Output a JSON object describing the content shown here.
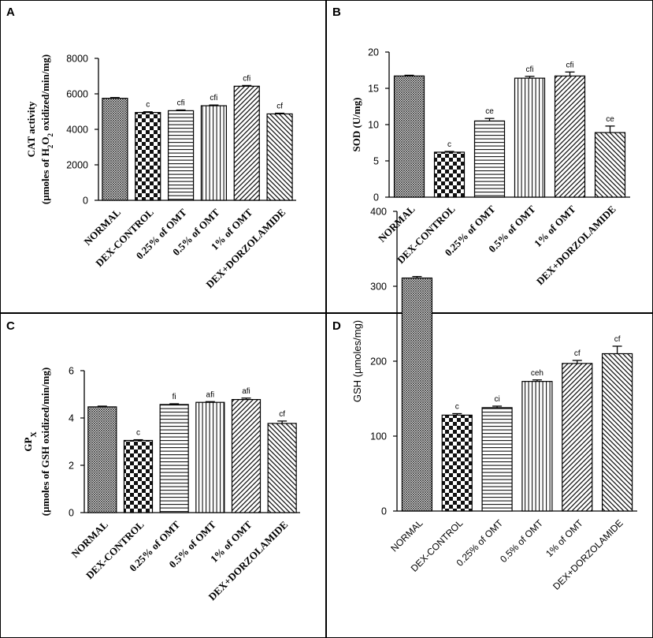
{
  "chart_data": [
    {
      "panel": "A",
      "type": "bar",
      "title": "",
      "xlabel": "",
      "ylabel_line1": "CAT activity",
      "ylabel_line2_prefix": "(µmoles of H",
      "ylabel_line2_sub1": "2",
      "ylabel_line2_mid": "O",
      "ylabel_line2_sub2": "2",
      "ylabel_line2_suffix": " oxidized/min/mg)",
      "ylim": [
        0,
        8000
      ],
      "yticks": [
        0,
        2000,
        4000,
        6000,
        8000
      ],
      "categories": [
        "NORMAL",
        "DEX-CONTROL",
        "0.25% of OMT",
        "0.5% of OMT",
        "1% of OMT",
        "DEX+DORZOLAMIDE"
      ],
      "values": [
        5750,
        4950,
        5050,
        5330,
        6430,
        4870
      ],
      "errors": [
        40,
        40,
        40,
        40,
        40,
        40
      ],
      "labels": [
        "",
        "c",
        "cfi",
        "cfi",
        "cfi",
        "cf"
      ]
    },
    {
      "panel": "B",
      "type": "bar",
      "title": "",
      "xlabel": "",
      "ylabel": "SOD (U/mg)",
      "ylim": [
        0,
        20
      ],
      "yticks": [
        0,
        5,
        10,
        15,
        20
      ],
      "categories": [
        "NORMAL",
        "DEX-CONTROL",
        "0.25% of OMT",
        "0.5% of OMT",
        "1% of OMT",
        "DEX+DORZOLAMIDE"
      ],
      "values": [
        16.7,
        6.2,
        10.5,
        16.4,
        16.7,
        8.9
      ],
      "errors": [
        0.1,
        0.1,
        0.35,
        0.25,
        0.55,
        0.9
      ],
      "labels": [
        "",
        "c",
        "ce",
        "cfi",
        "cfi",
        "ce"
      ]
    },
    {
      "panel": "C",
      "type": "bar",
      "title": "",
      "xlabel": "",
      "ylabel_line1_prefix": "GP",
      "ylabel_line1_sub": "X",
      "ylabel_line2": "(µmoles of GSH oxidized/min/mg)",
      "ylim": [
        0,
        6
      ],
      "yticks": [
        0,
        2,
        4,
        6
      ],
      "categories": [
        "NORMAL",
        "DEX-CONTROL",
        "0.25% of OMT",
        "0.5% of OMT",
        "1% of OMT",
        "DEX+DORZOLAMIDE"
      ],
      "values": [
        4.47,
        3.05,
        4.57,
        4.66,
        4.78,
        3.77
      ],
      "errors": [
        0.03,
        0.03,
        0.03,
        0.03,
        0.06,
        0.1
      ],
      "labels": [
        "",
        "c",
        "fi",
        "afi",
        "afi",
        "cf"
      ]
    },
    {
      "panel": "D",
      "type": "bar",
      "title": "",
      "xlabel": "",
      "ylabel": "GSH (µmoles/mg)",
      "ylim": [
        0,
        400
      ],
      "yticks": [
        0,
        100,
        200,
        300,
        400
      ],
      "categories": [
        "NORMAL",
        "DEX-CONTROL",
        "0.25% of OMT",
        "0.5% of OMT",
        "1% of OMT",
        "DEX+DORZOLAMIDE"
      ],
      "values": [
        311,
        128,
        138,
        173,
        197,
        210
      ],
      "errors": [
        2,
        2,
        2,
        2,
        4,
        10
      ],
      "labels": [
        "",
        "c",
        "ci",
        "ceh",
        "cf",
        "cf"
      ]
    }
  ]
}
